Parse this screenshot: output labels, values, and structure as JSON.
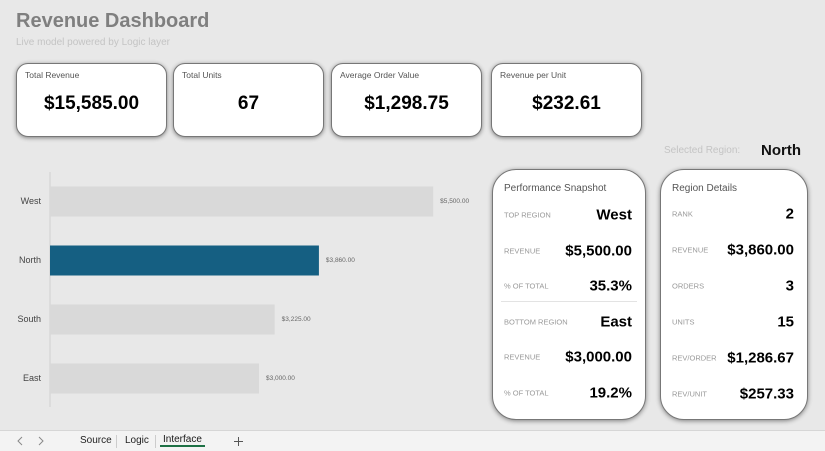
{
  "header": {
    "title": "Revenue Dashboard",
    "subtitle": "Live model powered by Logic layer"
  },
  "kpis": [
    {
      "label": "Total Revenue",
      "value": "$15,585.00"
    },
    {
      "label": "Total Units",
      "value": "67"
    },
    {
      "label": "Average Order Value",
      "value": "$1,298.75"
    },
    {
      "label": "Revenue per Unit",
      "value": "$232.61"
    }
  ],
  "selected_region": {
    "label": "Selected Region:",
    "value": "North"
  },
  "chart_data": {
    "type": "bar",
    "orientation": "horizontal",
    "categories": [
      "West",
      "North",
      "South",
      "East"
    ],
    "values": [
      5500,
      3860,
      3225,
      3000
    ],
    "value_labels": [
      "$5,500.00",
      "$3,860.00",
      "$3,225.00",
      "$3,000.00"
    ],
    "colors": [
      "#d9d9d9",
      "#155f82",
      "#d9d9d9",
      "#d9d9d9"
    ],
    "xlim": [
      0,
      6000
    ]
  },
  "snapshot": {
    "title": "Performance Snapshot",
    "rows": [
      [
        "TOP REGION",
        "West"
      ],
      [
        "REVENUE",
        "$5,500.00"
      ],
      [
        "% OF TOTAL",
        "35.3%"
      ],
      [
        "BOTTOM REGION",
        "East"
      ],
      [
        "REVENUE",
        "$3,000.00"
      ],
      [
        "% OF TOTAL",
        "19.2%"
      ]
    ]
  },
  "region_details": {
    "title": "Region Details",
    "rows": [
      [
        "RANK",
        "2"
      ],
      [
        "REVENUE",
        "$3,860.00"
      ],
      [
        "ORDERS",
        "3"
      ],
      [
        "UNITS",
        "15"
      ],
      [
        "REV/ORDER",
        "$1,286.67"
      ],
      [
        "REV/UNIT",
        "$257.33"
      ]
    ]
  },
  "tabs": [
    "Source",
    "Logic",
    "Interface"
  ],
  "active_tab": 2
}
